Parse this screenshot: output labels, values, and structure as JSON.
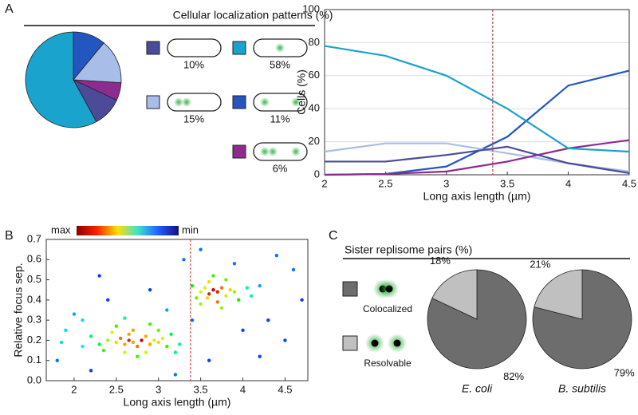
{
  "chart_data": [
    {
      "type": "pie",
      "panel": "A",
      "title": "Cellular localization patterns (%)",
      "values": [
        11,
        15,
        6,
        10,
        58
      ],
      "value_labels": [
        "11%",
        "15%",
        "6%",
        "10%",
        "58%"
      ],
      "colors": [
        "#2456c0",
        "#a8bde8",
        "#8e2b8e",
        "#4b4b9a",
        "#1aa3cc"
      ]
    },
    {
      "type": "line",
      "x": [
        2,
        2.5,
        3,
        3.5,
        4,
        4.5
      ],
      "xlim": [
        2,
        4.5
      ],
      "ylim": [
        0,
        100
      ],
      "xticks": [
        2,
        2.5,
        3,
        3.5,
        4,
        4.5
      ],
      "yticks": [
        0,
        20,
        40,
        60,
        80,
        100
      ],
      "grid": true,
      "xlabel": "Long axis length (µm)",
      "ylabel": "Cells (%)",
      "vline": 3.38,
      "series": [
        {
          "color": "#2456c0",
          "values": [
            0,
            0.5,
            5,
            23,
            54,
            63
          ]
        },
        {
          "color": "#a8bde8",
          "values": [
            14,
            19,
            19,
            13,
            7,
            2
          ]
        },
        {
          "color": "#8e2b8e",
          "values": [
            0,
            0.5,
            2,
            8,
            16,
            21
          ]
        },
        {
          "color": "#4b4b9a",
          "values": [
            8,
            8,
            12,
            17,
            7,
            1
          ]
        },
        {
          "color": "#1aa3cc",
          "values": [
            78,
            72,
            60,
            40,
            16,
            14
          ]
        }
      ]
    },
    {
      "type": "scatter",
      "panel": "B",
      "xlim": [
        1.67,
        4.77
      ],
      "ylim": [
        0,
        0.7
      ],
      "xticks": [
        2,
        2.5,
        3,
        3.5,
        4,
        4.5
      ],
      "yticks": [
        {
          "value": 0,
          "label": "0.0"
        },
        0.1,
        0.2,
        0.3,
        0.4,
        0.5,
        0.6,
        0.7
      ],
      "xlabel": "Long axis length (µm)",
      "ylabel": "Relative focus sep.",
      "vline": 3.38,
      "colorbar_labels": [
        "max",
        "min"
      ],
      "x": [
        2.3,
        2.4,
        2.5,
        2.55,
        2.6,
        2.65,
        2.7,
        2.75,
        2.8,
        2.85,
        2.9,
        2.95,
        3.0,
        3.05,
        3.1,
        2.2,
        2.35,
        2.45,
        2.6,
        2.7,
        2.85,
        3.0,
        3.15,
        3.25,
        2.1,
        2.5,
        2.75,
        2.9,
        3.2,
        2.65,
        3.5,
        3.55,
        3.6,
        3.65,
        3.7,
        3.75,
        3.8,
        3.85,
        3.9,
        3.45,
        3.6,
        3.7,
        3.8,
        3.95,
        4.05,
        3.4,
        3.65,
        3.75,
        4.1,
        3.5,
        4.2,
        3.58,
        1.8,
        1.9,
        2.0,
        2.2,
        2.4,
        1.85,
        2.6,
        2.9,
        3.1,
        3.3,
        3.5,
        3.9,
        4.3,
        4.5,
        4.6,
        4.4,
        3.6,
        4.0,
        2.3,
        3.2,
        4.7,
        3.4,
        2.1,
        4.2
      ],
      "y": [
        0.18,
        0.2,
        0.19,
        0.21,
        0.18,
        0.2,
        0.19,
        0.17,
        0.2,
        0.22,
        0.18,
        0.2,
        0.19,
        0.21,
        0.17,
        0.22,
        0.15,
        0.24,
        0.14,
        0.25,
        0.14,
        0.25,
        0.23,
        0.18,
        0.17,
        0.27,
        0.12,
        0.28,
        0.14,
        0.23,
        0.44,
        0.46,
        0.43,
        0.45,
        0.44,
        0.46,
        0.42,
        0.45,
        0.44,
        0.41,
        0.49,
        0.39,
        0.5,
        0.4,
        0.46,
        0.47,
        0.52,
        0.36,
        0.42,
        0.38,
        0.47,
        0.41,
        0.1,
        0.25,
        0.33,
        0.05,
        0.4,
        0.19,
        0.31,
        0.45,
        0.35,
        0.6,
        0.65,
        0.58,
        0.3,
        0.2,
        0.55,
        0.62,
        0.1,
        0.25,
        0.52,
        0.03,
        0.4,
        0.3,
        0.3,
        0.12
      ]
    },
    {
      "type": "pie_group",
      "panel": "C",
      "title": "Sister replisome pairs (%)",
      "categories": [
        "Colocalized",
        "Resolvable"
      ],
      "colors": [
        "#6d6d6d",
        "#c0c0c0"
      ],
      "pies": [
        {
          "title": "E. coli",
          "values": [
            82,
            18
          ],
          "value_labels": [
            "82%",
            "18%"
          ]
        },
        {
          "title": "B. subtilis",
          "values": [
            79,
            21
          ],
          "value_labels": [
            "79%",
            "21%"
          ]
        }
      ]
    }
  ]
}
